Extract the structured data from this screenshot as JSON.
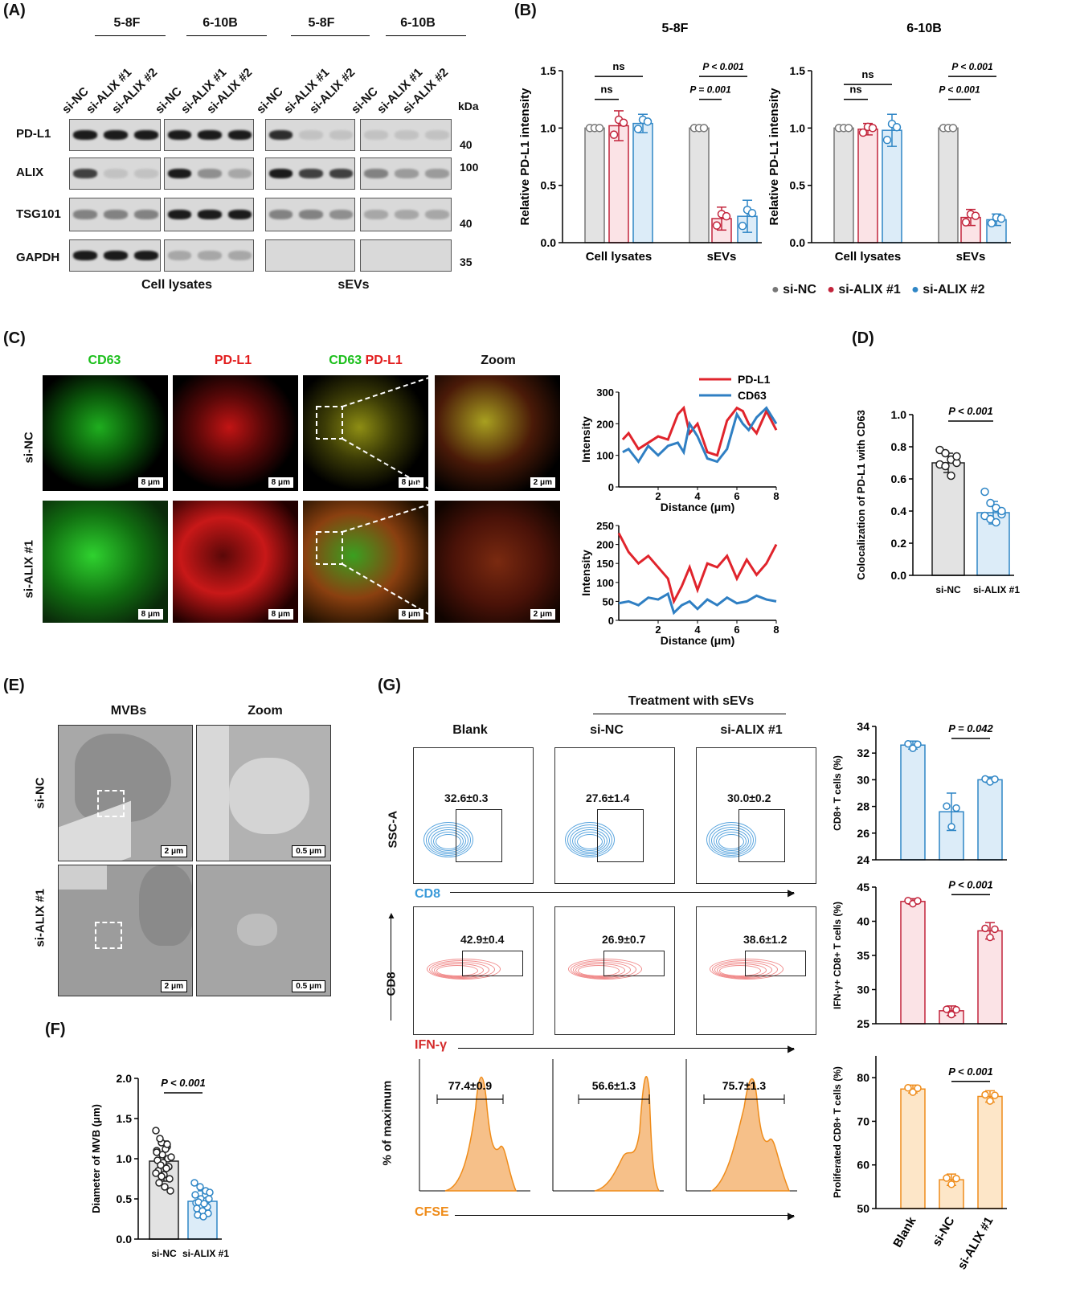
{
  "panels": {
    "A": "(A)",
    "B": "(B)",
    "C": "(C)",
    "D": "(D)",
    "E": "(E)",
    "F": "(F)",
    "G": "(G)"
  },
  "panelA": {
    "groups": [
      "5-8F",
      "6-10B",
      "5-8F",
      "6-10B"
    ],
    "lanes": [
      "si-NC",
      "si-ALIX #1",
      "si-ALIX #2",
      "si-NC",
      "si-ALIX #1",
      "si-ALIX #2",
      "si-NC",
      "si-ALIX #1",
      "si-ALIX #2",
      "si-NC",
      "si-ALIX #1",
      "si-ALIX #2"
    ],
    "kda": "kDa",
    "rows": [
      "PD-L1",
      "ALIX",
      "TSG101",
      "GAPDH"
    ],
    "markers": [
      "40",
      "100",
      "40",
      "35"
    ],
    "footer_left": "Cell lysates",
    "footer_right": "sEVs"
  },
  "panelB": {
    "legend": [
      "si-NC",
      "si-ALIX #1",
      "si-ALIX #2"
    ],
    "colors": {
      "nc": "#777777",
      "a1": "#c2243b",
      "a2": "#2f86c6",
      "nc_fill": "#e3e3e3",
      "a1_fill": "#fbe3e6",
      "a2_fill": "#dcecf8"
    },
    "ns": "ns"
  },
  "chart_data": [
    {
      "type": "bar",
      "title": "5-8F",
      "ylabel": "Relative PD-L1 intensity",
      "categories": [
        "Cell lysates",
        "sEVs"
      ],
      "ylim": [
        0,
        1.5
      ],
      "yticks": [
        "0.0",
        "0.5",
        "1.0",
        "1.5"
      ],
      "series": [
        {
          "name": "si-NC",
          "values": [
            1.0,
            1.0
          ],
          "err": [
            0,
            0
          ]
        },
        {
          "name": "si-ALIX #1",
          "values": [
            1.02,
            0.21
          ],
          "err": [
            0.13,
            0.1
          ]
        },
        {
          "name": "si-ALIX #2",
          "values": [
            1.04,
            0.23
          ],
          "err": [
            0.08,
            0.14
          ]
        }
      ],
      "annotations": [
        "ns",
        "ns",
        "P = 0.001",
        "P < 0.001"
      ]
    },
    {
      "type": "bar",
      "title": "6-10B",
      "ylabel": "Relative PD-L1 intensity",
      "categories": [
        "Cell lysates",
        "sEVs"
      ],
      "ylim": [
        0,
        1.5
      ],
      "yticks": [
        "0.0",
        "0.5",
        "1.0",
        "1.5"
      ],
      "series": [
        {
          "name": "si-NC",
          "values": [
            1.0,
            1.0
          ],
          "err": [
            0,
            0
          ]
        },
        {
          "name": "si-ALIX #1",
          "values": [
            0.99,
            0.22
          ],
          "err": [
            0.05,
            0.07
          ]
        },
        {
          "name": "si-ALIX #2",
          "values": [
            0.98,
            0.2
          ],
          "err": [
            0.14,
            0.05
          ]
        }
      ],
      "annotations": [
        "ns",
        "ns",
        "P < 0.001",
        "P < 0.001"
      ]
    },
    {
      "type": "line",
      "title": "",
      "xlabel": "Distance (μm)",
      "ylabel": "Intensity",
      "xlim": [
        0,
        8
      ],
      "ylim": [
        0,
        300
      ],
      "yticks": [
        "0",
        "100",
        "200",
        "300"
      ],
      "xticks": [
        "2",
        "4",
        "6",
        "8"
      ],
      "series": [
        {
          "name": "PD-L1",
          "x": [
            0.2,
            0.5,
            1,
            1.5,
            2,
            2.5,
            3,
            3.3,
            3.6,
            4,
            4.5,
            5,
            5.5,
            6,
            6.3,
            6.6,
            7,
            7.5,
            8
          ],
          "y": [
            150,
            170,
            120,
            140,
            160,
            150,
            230,
            250,
            170,
            200,
            110,
            100,
            210,
            250,
            240,
            200,
            170,
            240,
            180
          ]
        },
        {
          "name": "CD63",
          "x": [
            0.2,
            0.5,
            1,
            1.5,
            2,
            2.5,
            3,
            3.3,
            3.6,
            4,
            4.5,
            5,
            5.5,
            6,
            6.3,
            6.6,
            7,
            7.5,
            8
          ],
          "y": [
            110,
            120,
            80,
            130,
            100,
            130,
            140,
            110,
            200,
            160,
            90,
            80,
            120,
            230,
            200,
            180,
            220,
            250,
            200
          ]
        }
      ]
    },
    {
      "type": "line",
      "title": "",
      "xlabel": "Distance (μm)",
      "ylabel": "Intensity",
      "xlim": [
        0,
        8
      ],
      "ylim": [
        0,
        250
      ],
      "yticks": [
        "0",
        "50",
        "100",
        "150",
        "200",
        "250"
      ],
      "xticks": [
        "2",
        "4",
        "6",
        "8"
      ],
      "series": [
        {
          "name": "PD-L1",
          "x": [
            0,
            0.5,
            1,
            1.5,
            2,
            2.5,
            2.8,
            3.2,
            3.6,
            4,
            4.5,
            5,
            5.5,
            6,
            6.5,
            7,
            7.5,
            8
          ],
          "y": [
            230,
            180,
            150,
            170,
            140,
            110,
            50,
            90,
            140,
            80,
            150,
            140,
            170,
            110,
            160,
            120,
            150,
            200
          ]
        },
        {
          "name": "CD63",
          "x": [
            0,
            0.5,
            1,
            1.5,
            2,
            2.5,
            2.8,
            3.2,
            3.6,
            4,
            4.5,
            5,
            5.5,
            6,
            6.5,
            7,
            7.5,
            8
          ],
          "y": [
            45,
            50,
            40,
            60,
            55,
            70,
            20,
            40,
            50,
            30,
            55,
            40,
            60,
            45,
            50,
            65,
            55,
            50
          ]
        }
      ]
    },
    {
      "type": "bar",
      "title": "",
      "ylabel": "Colocalization of PD-L1 with CD63",
      "categories": [
        "si-NC",
        "si-ALIX #1"
      ],
      "ylim": [
        0,
        1.0
      ],
      "yticks": [
        "0.0",
        "0.2",
        "0.4",
        "0.6",
        "0.8",
        "1.0"
      ],
      "values": [
        0.7,
        0.39
      ],
      "err": [
        0.06,
        0.07
      ],
      "annotation": "P < 0.001"
    },
    {
      "type": "bar",
      "title": "",
      "ylabel": "Diameter of MVB (μm)",
      "categories": [
        "si-NC",
        "si-ALIX #1"
      ],
      "ylim": [
        0,
        2.0
      ],
      "yticks": [
        "0.0",
        "0.5",
        "1.0",
        "1.5",
        "2.0"
      ],
      "values": [
        0.97,
        0.47
      ],
      "err": [
        0.25,
        0.13
      ],
      "annotation": "P < 0.001"
    },
    {
      "type": "bar",
      "title": "",
      "ylabel": "CD8+ T cells (%)",
      "categories": [
        "Blank",
        "si-NC",
        "si-ALIX #1"
      ],
      "ylim": [
        24,
        34
      ],
      "yticks": [
        "24",
        "26",
        "28",
        "30",
        "32",
        "34"
      ],
      "values": [
        32.6,
        27.6,
        30.0
      ],
      "err": [
        0.3,
        1.4,
        0.2
      ],
      "annotation": "P = 0.042"
    },
    {
      "type": "bar",
      "title": "",
      "ylabel": "IFN-γ+ CD8+ T cells (%)",
      "categories": [
        "Blank",
        "si-NC",
        "si-ALIX #1"
      ],
      "ylim": [
        25,
        45
      ],
      "yticks": [
        "25",
        "30",
        "35",
        "40",
        "45"
      ],
      "values": [
        42.9,
        26.9,
        38.6
      ],
      "err": [
        0.4,
        0.7,
        1.2
      ],
      "annotation": "P < 0.001"
    },
    {
      "type": "bar",
      "title": "",
      "ylabel": "Proliferated CD8+ T cells (%)",
      "categories": [
        "Blank",
        "si-NC",
        "si-ALIX #1"
      ],
      "ylim": [
        50,
        85
      ],
      "yticks": [
        "50",
        "60",
        "70",
        "80"
      ],
      "values": [
        77.4,
        56.6,
        75.7
      ],
      "err": [
        0.9,
        1.3,
        1.3
      ],
      "annotation": "P < 0.001"
    }
  ],
  "panelC": {
    "cols": [
      "CD63",
      "PD-L1",
      "CD63",
      "PD-L1",
      "Zoom"
    ],
    "rows": [
      "si-NC",
      "si-ALIX #1"
    ],
    "scale": "8 μm",
    "scale_zoom": "2 μm",
    "legend": [
      "PD-L1",
      "CD63"
    ]
  },
  "panelE": {
    "cols": [
      "MVBs",
      "Zoom"
    ],
    "rows": [
      "si-NC",
      "si-ALIX #1"
    ],
    "scale": "2 μm",
    "scale_zoom": "0.5 μm"
  },
  "panelG": {
    "treatment": "Treatment with sEVs",
    "cols": [
      "Blank",
      "si-NC",
      "si-ALIX #1"
    ],
    "row_axes": {
      "y1": "SSC-A",
      "x1": "CD8",
      "y2": "CD8",
      "x2": "IFN-γ",
      "y3": "% of maximum",
      "x3": "CFSE"
    },
    "row1": [
      "32.6±0.3",
      "27.6±1.4",
      "30.0±0.2"
    ],
    "row2": [
      "42.9±0.4",
      "26.9±0.7",
      "38.6±1.2"
    ],
    "row3": [
      "77.4±0.9",
      "56.6±1.3",
      "75.7±1.3"
    ]
  }
}
